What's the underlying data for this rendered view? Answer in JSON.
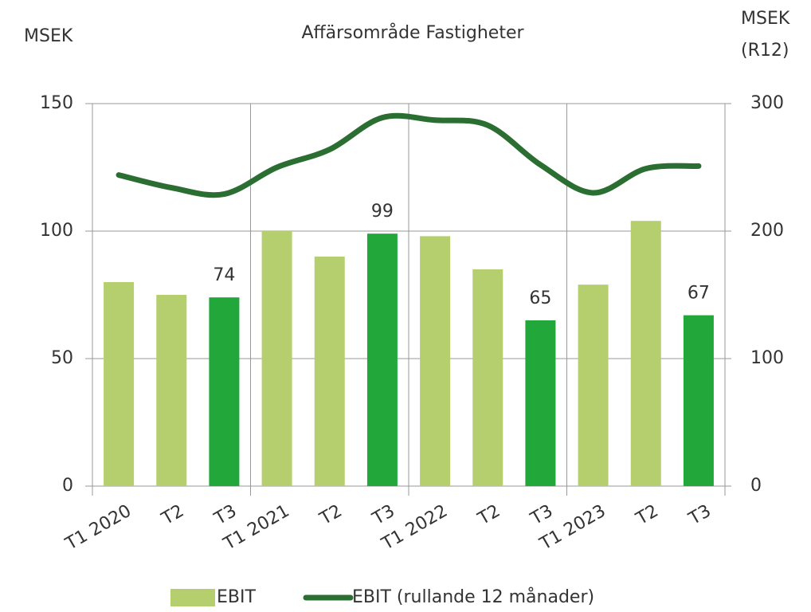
{
  "chart_data": {
    "type": "bar_line",
    "title": "Affärsområde Fastigheter",
    "y_label": "MSEK",
    "y2_label": [
      "MSEK",
      "(R12)"
    ],
    "categories": [
      "T1 2020",
      "T2",
      "T3",
      "T1 2021",
      "T2",
      "T3",
      "T1 2022",
      "T2",
      "T3",
      "T1 2023",
      "T2",
      "T3"
    ],
    "series": [
      {
        "name": "EBIT",
        "type": "bar",
        "color": "#b5cf6f",
        "colors": [
          "#b5cf6f",
          "#b5cf6f",
          "#22a83a",
          "#b5cf6f",
          "#b5cf6f",
          "#22a83a",
          "#b5cf6f",
          "#b5cf6f",
          "#22a83a",
          "#b5cf6f",
          "#b5cf6f",
          "#22a83a"
        ],
        "values": [
          80,
          75,
          74,
          100,
          90,
          99,
          98,
          85,
          65,
          79,
          104,
          67
        ],
        "value_labels": [
          null,
          null,
          "74",
          null,
          null,
          "99",
          null,
          null,
          "65",
          null,
          null,
          "67"
        ]
      },
      {
        "name": "EBIT (rullande 12 månader)",
        "type": "line",
        "axis": "y2",
        "color": "#2b6e31",
        "values": [
          244,
          234,
          229,
          250,
          264,
          289,
          287,
          283,
          252,
          230,
          249,
          251
        ]
      }
    ],
    "ylim": [
      0,
      150
    ],
    "yticks": [
      0,
      50,
      100,
      150
    ],
    "y2lim": [
      0,
      300
    ],
    "y2ticks": [
      0,
      100,
      200,
      300
    ],
    "grid": true,
    "legend": "bottom"
  }
}
